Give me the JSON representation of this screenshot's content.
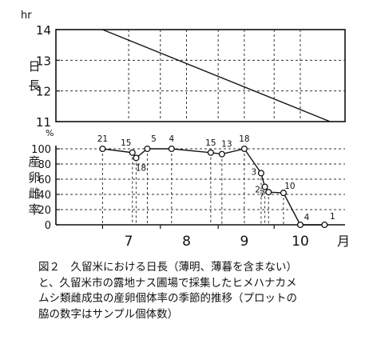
{
  "chart_data": [
    {
      "type": "line",
      "title": "",
      "ylabel": "日長",
      "yunit": "hr",
      "ylim": [
        11,
        14
      ],
      "yticks": [
        "11",
        "12",
        "13",
        "14"
      ],
      "series": [
        {
          "x": [
            "7/01",
            "10/31"
          ],
          "y": [
            14.0,
            11.0
          ]
        }
      ]
    },
    {
      "type": "line",
      "title": "",
      "ylabel": "産卵雌率",
      "yunit": "%",
      "ylim": [
        0,
        100
      ],
      "yticks": [
        "0",
        "20",
        "40",
        "60",
        "80",
        "100"
      ],
      "series": [
        {
          "x": [
            "7/01",
            "7/17",
            "7/19",
            "7/25",
            "8/07",
            "8/28",
            "9/03",
            "9/15",
            "9/24",
            "9/26",
            "9/28",
            "10/06",
            "10/15",
            "10/28"
          ],
          "y": [
            100,
            95,
            88,
            100,
            100,
            95,
            93,
            100,
            68,
            50,
            43,
            42,
            0,
            0
          ],
          "n": [
            "21",
            "15",
            "18",
            "5",
            "4",
            "15",
            "13",
            "18",
            "3",
            "2",
            "7",
            "10",
            "4",
            "1"
          ]
        }
      ]
    },
    {
      "xticks": [
        "7",
        "8",
        "9",
        "10"
      ],
      "xunit": "月"
    }
  ],
  "caption": {
    "lines": [
      "図２　久留米における日長（薄明、薄暮を含まない）",
      "と、久留米市の露地ナス圃場で採集したヒメハナカメ",
      "ムシ類雌成虫の産卵個体率の季節的推移（プロットの",
      "脇の数字はサンプル個体数）"
    ]
  }
}
